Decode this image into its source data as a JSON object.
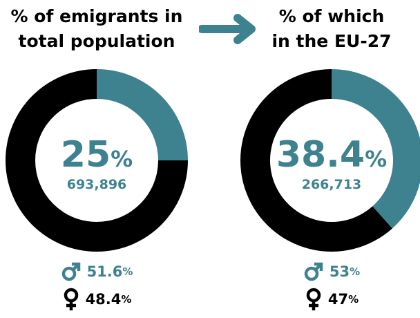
{
  "colors": {
    "teal": "#3e8290",
    "black": "#000000",
    "white": "#ffffff"
  },
  "icons": {
    "arrow": "right-arrow-icon",
    "male": "male-symbol-icon",
    "female": "female-symbol-icon"
  },
  "chart_data": [
    {
      "type": "pie",
      "style": "donut",
      "title": "% of emigrants in total population",
      "title_lines": [
        "% of emigrants in",
        "total population"
      ],
      "slices": [
        {
          "label": "emigrants",
          "value": 25,
          "color": "#3e8290"
        },
        {
          "label": "rest",
          "value": 75,
          "color": "#000000"
        }
      ],
      "center_value": "25",
      "center_unit": "%",
      "center_count": "693,896",
      "male": {
        "value": "51.6",
        "unit": "%"
      },
      "female": {
        "value": "48.4",
        "unit": "%"
      }
    },
    {
      "type": "pie",
      "style": "donut",
      "title": "% of which in the EU-27",
      "title_lines": [
        "% of which",
        "in the EU-27"
      ],
      "slices": [
        {
          "label": "in the EU-27",
          "value": 38.4,
          "color": "#3e8290"
        },
        {
          "label": "rest",
          "value": 61.6,
          "color": "#000000"
        }
      ],
      "center_value": "38.4",
      "center_unit": "%",
      "center_count": "266,713",
      "male": {
        "value": "53",
        "unit": "%"
      },
      "female": {
        "value": "47",
        "unit": "%"
      }
    }
  ]
}
